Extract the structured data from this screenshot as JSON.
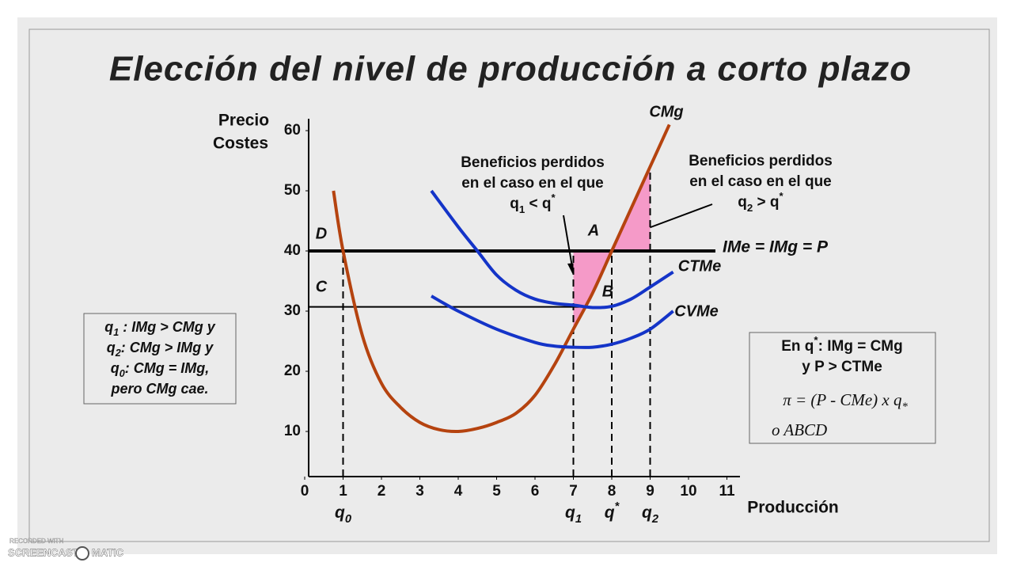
{
  "title": "Elección del nivel de producción a corto plazo",
  "chart_data": {
    "type": "line",
    "y_label": [
      "Precio",
      "Costes"
    ],
    "x_label": "Producción",
    "xlim": [
      0,
      11.5
    ],
    "ylim": [
      2.5,
      62
    ],
    "xticks": [
      0,
      1,
      2,
      3,
      4,
      5,
      6,
      7,
      8,
      9,
      10,
      11
    ],
    "yticks": [
      10,
      20,
      30,
      40,
      50,
      60
    ],
    "series": [
      {
        "name": "CMg",
        "color": "#b5430f",
        "x": [
          0.75,
          1,
          1.5,
          2,
          2.5,
          3,
          3.5,
          4,
          4.5,
          5,
          5.5,
          6,
          6.5,
          7,
          7.5,
          8,
          8.5,
          9,
          9.5
        ],
        "values": [
          50,
          40,
          26,
          18,
          14,
          11.5,
          10.3,
          10,
          10.5,
          11.5,
          13,
          16,
          21,
          27,
          33,
          40,
          47,
          54,
          61
        ]
      },
      {
        "name": "CTMe",
        "color": "#1434c8",
        "x": [
          3.3,
          4,
          4.5,
          5,
          5.5,
          6,
          6.5,
          7,
          7.5,
          8,
          8.5,
          9,
          9.6
        ],
        "values": [
          50,
          44,
          40,
          36,
          33.5,
          32,
          31.3,
          31,
          30.6,
          30.8,
          32,
          34,
          36.5
        ]
      },
      {
        "name": "CVMe",
        "color": "#1434c8",
        "x": [
          3.3,
          4,
          5,
          6,
          6.5,
          7,
          7.5,
          8,
          8.5,
          9,
          9.6
        ],
        "values": [
          32.5,
          30,
          27,
          24.8,
          24.2,
          24,
          24,
          24.5,
          25.5,
          27,
          30
        ]
      }
    ],
    "hlines": [
      {
        "name": "IMe = IMg = P",
        "value": 40,
        "to": 10.7,
        "color": "#000000"
      },
      {
        "value": 30.7,
        "to": 8,
        "color": "#000000"
      }
    ],
    "q_lines": [
      {
        "value": 1,
        "top": 40,
        "label": "q",
        "sub": "0"
      },
      {
        "value": 7,
        "top": 40,
        "label": "q",
        "sub": "1"
      },
      {
        "value": 8,
        "top": 40,
        "label": "q",
        "sup": "*"
      },
      {
        "value": 9,
        "top": 54,
        "label": "q",
        "sub": "2"
      }
    ],
    "shaded_color": "#f59ac8",
    "point_labels": [
      "D",
      "C",
      "A",
      "B"
    ],
    "annotations": [
      [
        [
          {
            "text": "Beneficios perdidos"
          }
        ],
        [
          {
            "text": "en el caso en el que"
          }
        ],
        [
          {
            "text": "q"
          },
          {
            "sub": "1"
          },
          {
            "text": " < q"
          },
          {
            "sup": "*"
          }
        ]
      ],
      [
        [
          {
            "text": "Beneficios perdidos"
          }
        ],
        [
          {
            "text": "en el caso en el que"
          }
        ],
        [
          {
            "text": "q"
          },
          {
            "sub": "2"
          },
          {
            "text": " > q"
          },
          {
            "sup": "*"
          }
        ]
      ]
    ],
    "left_box": [
      [
        {
          "text": "q"
        },
        {
          "sub": "1"
        },
        {
          "text": " : IMg > CMg  y"
        }
      ],
      [
        {
          "text": "q"
        },
        {
          "sub": "2"
        },
        {
          "text": ": CMg > IMg  y"
        }
      ],
      [
        {
          "text": "q"
        },
        {
          "sub": "0"
        },
        {
          "text": ": CMg = IMg,"
        }
      ],
      [
        {
          "text": "pero CMg  cae."
        }
      ]
    ],
    "right_box": [
      [
        {
          "text": "En q"
        },
        {
          "sup": "*"
        },
        {
          "text": ": IMg = CMg"
        }
      ],
      [
        {
          "text": "y P > CTMe"
        }
      ],
      [
        {
          "text": "π = (P  -  CMe)  x  q"
        },
        {
          "sub": "*"
        }
      ],
      [
        {
          "text": "o    ABCD"
        }
      ]
    ]
  },
  "watermark": [
    "RECORDED WITH",
    "SCREENCAST",
    "MATIC"
  ]
}
